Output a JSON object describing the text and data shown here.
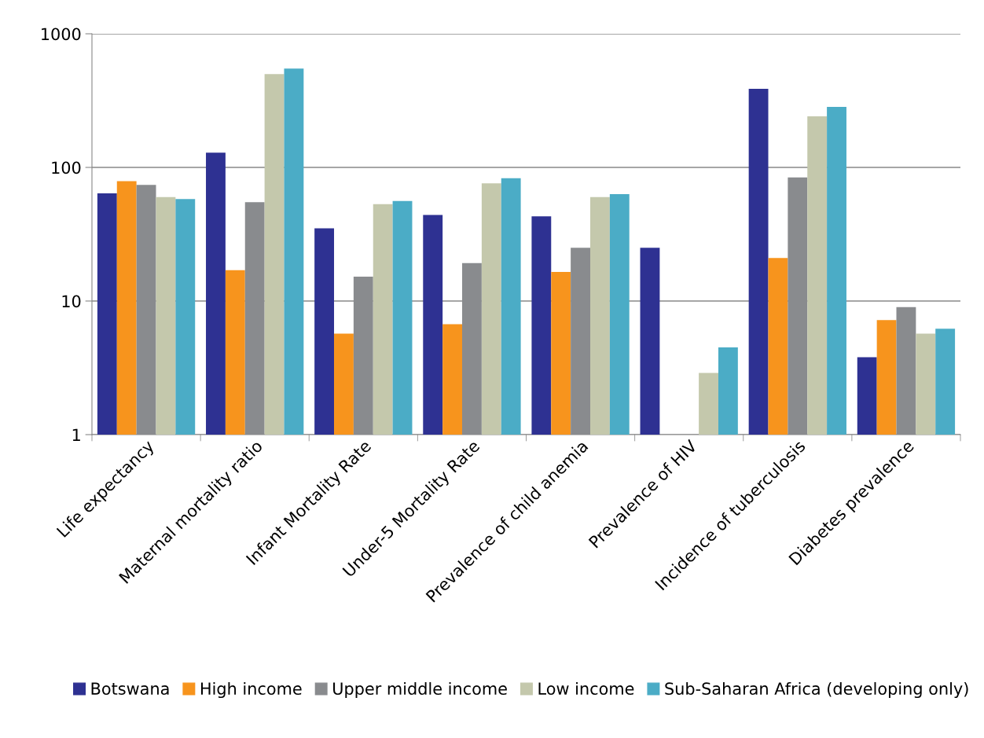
{
  "chart_data": {
    "type": "bar",
    "categories": [
      "Life expectancy",
      "Maternal mortality ratio",
      "Infant Mortality Rate",
      "Under-5 Mortality Rate",
      "Prevalence of child anemia",
      "Prevalence of HIV",
      "Incidence of tuberculosis",
      "Diabetes prevalence"
    ],
    "series": [
      {
        "name": "Botswana",
        "color": "#2e3192",
        "values": [
          64,
          129,
          35,
          44,
          43,
          25,
          387,
          3.8
        ]
      },
      {
        "name": "High income",
        "color": "#f7941d",
        "values": [
          79,
          17,
          5.7,
          6.7,
          16.5,
          null,
          21,
          7.2
        ]
      },
      {
        "name": "Upper middle income",
        "color": "#898b8e",
        "values": [
          74,
          55,
          15.2,
          19.2,
          25,
          null,
          84,
          9
        ]
      },
      {
        "name": "Low income",
        "color": "#c4c8ac",
        "values": [
          60,
          500,
          53,
          76,
          60,
          2.9,
          241,
          5.7
        ]
      },
      {
        "name": "Sub-Saharan Africa (developing only)",
        "color": "#4bacc6",
        "values": [
          58,
          550,
          56,
          83,
          63,
          4.5,
          284,
          6.2
        ]
      }
    ],
    "log": true,
    "ylim": [
      1,
      1000
    ],
    "yticks": [
      1,
      10,
      100,
      1000
    ],
    "grid": "y",
    "legend": "bottom"
  }
}
